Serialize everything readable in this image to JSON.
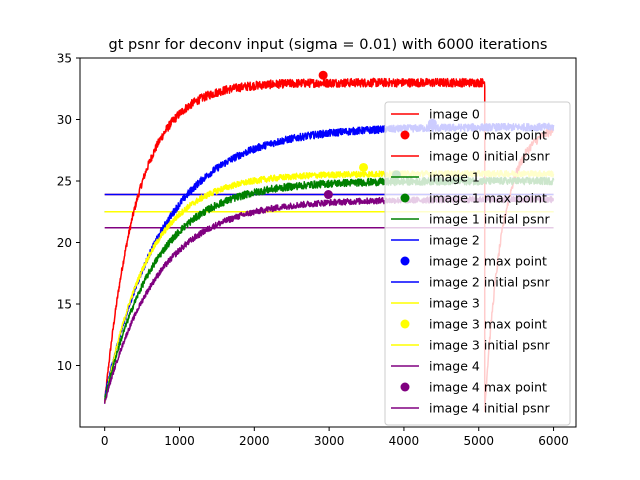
{
  "chart_data": {
    "type": "line",
    "title": "gt psnr for deconv input (sigma = 0.01) with 6000 iterations",
    "xlabel": "",
    "ylabel": "",
    "xlim": [
      -330,
      6300
    ],
    "ylim": [
      5,
      35
    ],
    "xticks": [
      0,
      1000,
      2000,
      3000,
      4000,
      5000,
      6000
    ],
    "yticks": [
      10,
      15,
      20,
      25,
      30,
      35
    ],
    "grid": false,
    "legend_position": "right",
    "series": [
      {
        "name": "image 0",
        "color": "#ff0000",
        "max_point": {
          "name": "image 0 max point",
          "x": 2920,
          "y": 33.6
        },
        "initial_psnr": {
          "name": "image 0 initial psnr",
          "y": 23.9
        },
        "curve": {
          "start": 7.0,
          "plateau": 33.0,
          "tau": 430,
          "noise": 0.35,
          "break_at": 5080,
          "after": {
            "from": 5080,
            "to": 6000,
            "start": 6.5,
            "end": 29.6,
            "tau": 240
          }
        }
      },
      {
        "name": "image 1",
        "color": "#008000",
        "max_point": {
          "name": "image 1 max point",
          "x": 3900,
          "y": 25.5
        },
        "initial_psnr": {
          "name": "image 1 initial psnr",
          "y": 22.5
        },
        "curve": {
          "start": 7.2,
          "plateau": 25.0,
          "tau": 680,
          "noise": 0.3
        }
      },
      {
        "name": "image 2",
        "color": "#0000ff",
        "max_point": {
          "name": "image 2 max point",
          "x": 4380,
          "y": 29.7
        },
        "initial_psnr": {
          "name": "image 2 initial psnr",
          "y": 23.9
        },
        "curve": {
          "start": 7.5,
          "plateau": 29.4,
          "tau": 800,
          "noise": 0.3
        }
      },
      {
        "name": "image 3",
        "color": "#ffff00",
        "max_point": {
          "name": "image 3 max point",
          "x": 3460,
          "y": 26.1
        },
        "initial_psnr": {
          "name": "image 3 initial psnr",
          "y": 22.5
        },
        "curve": {
          "start": 7.0,
          "plateau": 25.6,
          "tau": 580,
          "noise": 0.25
        }
      },
      {
        "name": "image 4",
        "color": "#800080",
        "max_point": {
          "name": "image 4 max point",
          "x": 2990,
          "y": 23.9
        },
        "initial_psnr": {
          "name": "image 4 initial psnr",
          "y": 21.2
        },
        "curve": {
          "start": 7.0,
          "plateau": 23.5,
          "tau": 720,
          "noise": 0.25
        }
      }
    ]
  }
}
